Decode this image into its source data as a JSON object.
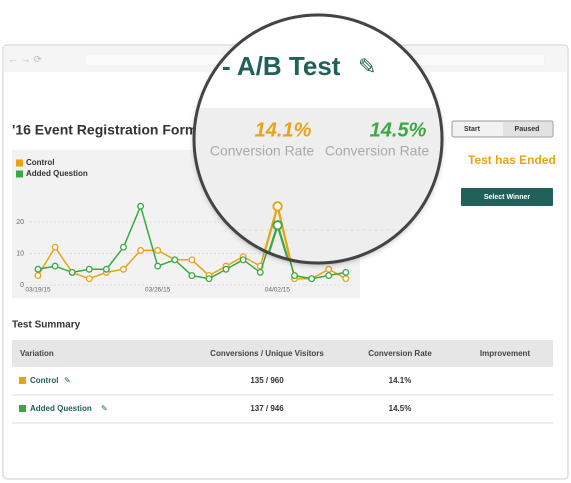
{
  "header": {
    "title": "'16 Event Registration Form -",
    "title_zoomed": "- A/B Test"
  },
  "controls": {
    "start": "Start",
    "paused": "Paused",
    "status": "Test has Ended",
    "select_winner": "Select Winner"
  },
  "stats": [
    {
      "value": "14.1%",
      "label": "Conversion Rate"
    },
    {
      "value": "14.5%",
      "label": "Conversion Rate"
    }
  ],
  "chart_data": {
    "type": "line",
    "categories": [
      "03/19/15",
      null,
      null,
      null,
      null,
      null,
      null,
      "03/26/15",
      null,
      null,
      null,
      null,
      null,
      null,
      "04/02/15",
      null,
      null,
      null,
      null
    ],
    "series": [
      {
        "name": "Control",
        "color": "#e8a317",
        "values": [
          3,
          12,
          4,
          2,
          4,
          5,
          11,
          11,
          8,
          8,
          3,
          6,
          9,
          6,
          25,
          2,
          2,
          5,
          2
        ]
      },
      {
        "name": "Added Question",
        "color": "#3aa843",
        "values": [
          5,
          6,
          4,
          5,
          5,
          12,
          25,
          6,
          8,
          3,
          2,
          5,
          8,
          4,
          21,
          3,
          2,
          3,
          4
        ]
      }
    ],
    "ylim": [
      0,
      40
    ],
    "yticks": [
      0,
      10,
      20
    ],
    "grid": true
  },
  "table": {
    "title": "Test Summary",
    "columns": [
      "Variation",
      "Conversions / Unique Visitors",
      "Conversion Rate",
      "Improvement"
    ],
    "rows": [
      [
        "Control",
        "135 / 960",
        "14.1%"
      ],
      [
        "Added Question",
        "137 / 946",
        "14.5%"
      ]
    ]
  }
}
